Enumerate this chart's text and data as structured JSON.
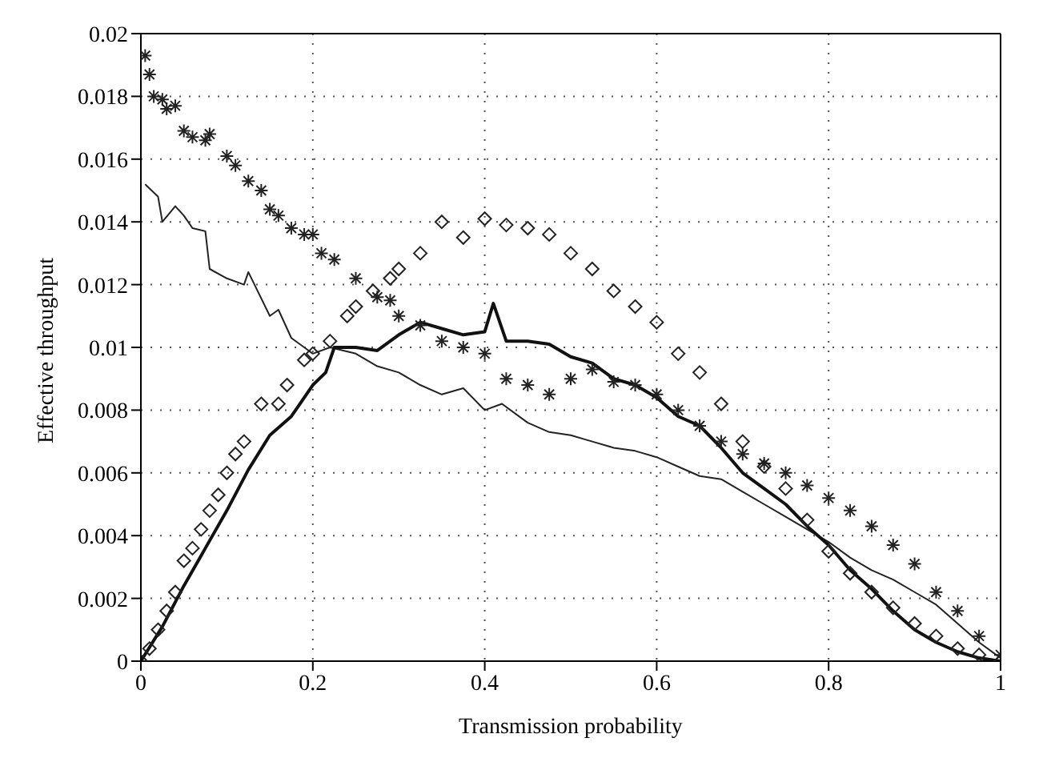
{
  "chart_data": {
    "type": "line",
    "xlabel": "Transmission probability",
    "ylabel": "Effective throughput",
    "xlim": [
      0,
      1
    ],
    "xticks": [
      0,
      0.2,
      0.4,
      0.6,
      0.8,
      1
    ],
    "ylim": [
      0,
      0.02
    ],
    "yticks": [
      0,
      0.002,
      0.004,
      0.006,
      0.008,
      0.01,
      0.012,
      0.014,
      0.016,
      0.018,
      0.02
    ],
    "grid": true,
    "series": [
      {
        "color": "#222222",
        "marker": "none",
        "line_style": "solid",
        "x": [
          0.005,
          0.02,
          0.025,
          0.04,
          0.05,
          0.06,
          0.075,
          0.08,
          0.1,
          0.12,
          0.125,
          0.15,
          0.16,
          0.175,
          0.19,
          0.2,
          0.22,
          0.25,
          0.275,
          0.3,
          0.325,
          0.35,
          0.375,
          0.4,
          0.42,
          0.45,
          0.475,
          0.5,
          0.525,
          0.55,
          0.575,
          0.6,
          0.625,
          0.65,
          0.675,
          0.7,
          0.725,
          0.75,
          0.775,
          0.8,
          0.825,
          0.85,
          0.875,
          0.9,
          0.925,
          0.95,
          0.975,
          1
        ],
        "values": [
          0.0152,
          0.0148,
          0.014,
          0.0145,
          0.0142,
          0.0138,
          0.0137,
          0.0125,
          0.0122,
          0.012,
          0.0124,
          0.011,
          0.0112,
          0.0103,
          0.01,
          0.0098,
          0.01,
          0.0098,
          0.0094,
          0.0092,
          0.0088,
          0.0085,
          0.0087,
          0.008,
          0.0082,
          0.0076,
          0.0073,
          0.0072,
          0.007,
          0.0068,
          0.0067,
          0.0065,
          0.0062,
          0.0059,
          0.0058,
          0.0054,
          0.005,
          0.0046,
          0.0042,
          0.0038,
          0.0033,
          0.0029,
          0.0026,
          0.0022,
          0.0018,
          0.0012,
          0.0006,
          0.0001
        ]
      },
      {
        "color": "#111111",
        "marker": "none",
        "line_style": "solid",
        "x": [
          0,
          0.025,
          0.05,
          0.075,
          0.1,
          0.125,
          0.15,
          0.175,
          0.2,
          0.215,
          0.225,
          0.25,
          0.275,
          0.3,
          0.325,
          0.35,
          0.375,
          0.4,
          0.41,
          0.425,
          0.45,
          0.475,
          0.5,
          0.525,
          0.55,
          0.575,
          0.6,
          0.625,
          0.65,
          0.675,
          0.7,
          0.725,
          0.75,
          0.775,
          0.8,
          0.825,
          0.85,
          0.875,
          0.9,
          0.925,
          0.95,
          0.975,
          1
        ],
        "values": [
          0,
          0.0011,
          0.0024,
          0.0036,
          0.0048,
          0.0061,
          0.0072,
          0.0078,
          0.0088,
          0.0092,
          0.01,
          0.01,
          0.0099,
          0.0104,
          0.0108,
          0.0106,
          0.0104,
          0.0105,
          0.0114,
          0.0102,
          0.0102,
          0.0101,
          0.0097,
          0.0095,
          0.009,
          0.0088,
          0.0084,
          0.0078,
          0.0075,
          0.0068,
          0.006,
          0.0055,
          0.005,
          0.0043,
          0.0037,
          0.0029,
          0.0023,
          0.0016,
          0.001,
          0.0006,
          0.0003,
          0.0001,
          0
        ]
      },
      {
        "type": "scatter",
        "color": "#222222",
        "marker": "cross",
        "x": [
          0.005,
          0.01,
          0.015,
          0.025,
          0.03,
          0.04,
          0.05,
          0.06,
          0.075,
          0.08,
          0.1,
          0.11,
          0.125,
          0.14,
          0.15,
          0.16,
          0.175,
          0.19,
          0.2,
          0.21,
          0.225,
          0.25,
          0.275,
          0.29,
          0.3,
          0.325,
          0.35,
          0.375,
          0.4,
          0.425,
          0.45,
          0.475,
          0.5,
          0.525,
          0.55,
          0.575,
          0.6,
          0.625,
          0.65,
          0.675,
          0.7,
          0.725,
          0.75,
          0.775,
          0.8,
          0.825,
          0.85,
          0.875,
          0.9,
          0.925,
          0.95,
          0.975,
          1
        ],
        "values": [
          0.0193,
          0.0187,
          0.018,
          0.0179,
          0.0176,
          0.0177,
          0.0169,
          0.0167,
          0.0166,
          0.0168,
          0.0161,
          0.0158,
          0.0153,
          0.015,
          0.0144,
          0.0142,
          0.0138,
          0.0136,
          0.0136,
          0.013,
          0.0128,
          0.0122,
          0.0116,
          0.0115,
          0.011,
          0.0107,
          0.0102,
          0.01,
          0.0098,
          0.009,
          0.0088,
          0.0085,
          0.009,
          0.0093,
          0.0089,
          0.0088,
          0.0085,
          0.008,
          0.0075,
          0.007,
          0.0066,
          0.0063,
          0.006,
          0.0056,
          0.0052,
          0.0048,
          0.0043,
          0.0037,
          0.0031,
          0.0022,
          0.0016,
          0.0008,
          0.0002
        ]
      },
      {
        "type": "scatter",
        "color": "#222222",
        "marker": "diamond",
        "x": [
          0,
          0.01,
          0.02,
          0.03,
          0.04,
          0.05,
          0.06,
          0.07,
          0.08,
          0.09,
          0.1,
          0.11,
          0.12,
          0.14,
          0.16,
          0.17,
          0.19,
          0.2,
          0.22,
          0.24,
          0.25,
          0.27,
          0.29,
          0.3,
          0.325,
          0.35,
          0.375,
          0.4,
          0.425,
          0.45,
          0.475,
          0.5,
          0.525,
          0.55,
          0.575,
          0.6,
          0.625,
          0.65,
          0.675,
          0.7,
          0.725,
          0.75,
          0.775,
          0.8,
          0.825,
          0.85,
          0.875,
          0.9,
          0.925,
          0.95,
          0.975,
          1
        ],
        "values": [
          0,
          0.0004,
          0.001,
          0.0016,
          0.0022,
          0.0032,
          0.0036,
          0.0042,
          0.0048,
          0.0053,
          0.006,
          0.0066,
          0.007,
          0.0082,
          0.0082,
          0.0088,
          0.0096,
          0.0098,
          0.0102,
          0.011,
          0.0113,
          0.0118,
          0.0122,
          0.0125,
          0.013,
          0.014,
          0.0135,
          0.0141,
          0.0139,
          0.0138,
          0.0136,
          0.013,
          0.0125,
          0.0118,
          0.0113,
          0.0108,
          0.0098,
          0.0092,
          0.0082,
          0.007,
          0.0062,
          0.0055,
          0.0045,
          0.0035,
          0.0028,
          0.0022,
          0.0017,
          0.0012,
          0.0008,
          0.0004,
          0.0002,
          0
        ]
      }
    ]
  }
}
